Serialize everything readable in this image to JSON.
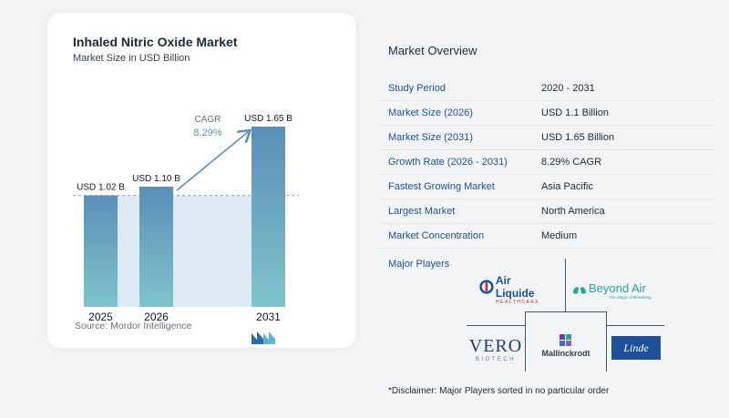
{
  "chart_data": {
    "type": "bar",
    "title": "Inhaled Nitric Oxide Market",
    "subtitle": "Market Size in USD Billion",
    "categories": [
      "2025",
      "2026",
      "2031"
    ],
    "values": [
      1.02,
      1.1,
      1.65
    ],
    "data_labels": [
      "USD 1.02 B",
      "USD 1.10 B",
      "USD 1.65 B"
    ],
    "cagr_label": "CAGR",
    "cagr_value": "8.29%",
    "ylim": [
      0,
      1.7
    ],
    "colors": {
      "bar_top": "#5b8fb7",
      "bar_bottom": "#7fc4cc",
      "band": "#dde9f3",
      "arrow": "#5b8fb7"
    }
  },
  "source": "Source:  Mordor Intelligence",
  "overview": {
    "title": "Market Overview",
    "rows": [
      {
        "label": "Study Period",
        "value": "2020 - 2031"
      },
      {
        "label": "Market Size (2026)",
        "value": "USD 1.1 Billion"
      },
      {
        "label": "Market Size (2031)",
        "value": "USD 1.65 Billion"
      },
      {
        "label": "Growth Rate (2026 - 2031)",
        "value": "8.29% CAGR"
      },
      {
        "label": "Fastest Growing Market",
        "value": "Asia Pacific"
      },
      {
        "label": "Largest Market",
        "value": "North America"
      },
      {
        "label": "Market Concentration",
        "value": "Medium"
      }
    ]
  },
  "players": {
    "title": "Major Players",
    "air_liquide": {
      "name": "Air Liquide",
      "sub": "HEALTHCARE"
    },
    "beyond_air": {
      "name": "Beyond Air",
      "tagline": "The Magic of Breathing"
    },
    "vero": {
      "name": "VERO",
      "sub": "BIOTECH"
    },
    "mallinckrodt": {
      "name": "Mallinckrodt"
    },
    "linde": {
      "name": "Linde"
    }
  },
  "disclaimer": "*Disclaimer: Major Players sorted in no particular order"
}
